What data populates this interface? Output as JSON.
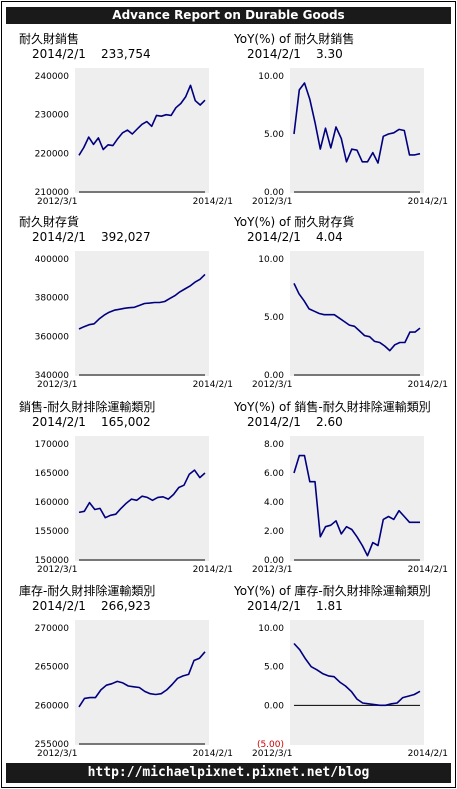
{
  "header": {
    "title": "Advance Report on Durable Goods"
  },
  "footer": {
    "url": "http://michaelpixnet.pixnet.net/blog"
  },
  "colors": {
    "line": "#00007f",
    "plot_bg": "#eeeeee",
    "negative_label": "#cc0000"
  },
  "panels": [
    {
      "title": "耐久財銷售",
      "date": "2014/2/1",
      "value": "233,754",
      "chart_data": {
        "type": "line",
        "title": "耐久財銷售",
        "x_start_label": "2012/3/1",
        "x_end_label": "2014/2/1",
        "ylim": [
          210000,
          240000
        ],
        "yticks": [
          210000,
          220000,
          230000,
          240000
        ],
        "ytick_labels": [
          "210000",
          "220000",
          "230000",
          "240000"
        ],
        "values": [
          219500,
          221500,
          224200,
          222300,
          224000,
          221000,
          222200,
          222000,
          223800,
          225300,
          226000,
          225000,
          226300,
          227500,
          228200,
          227000,
          229800,
          229600,
          230000,
          229800,
          231800,
          232900,
          234600,
          237600,
          233600,
          232500,
          233754
        ]
      }
    },
    {
      "title": "YoY(%) of 耐久財銷售",
      "date": "2014/2/1",
      "value": "3.30",
      "chart_data": {
        "type": "line",
        "title": "YoY(%) of 耐久財銷售",
        "x_start_label": "2012/3/1",
        "x_end_label": "2014/2/1",
        "ylim": [
          0,
          10
        ],
        "yticks": [
          0,
          5,
          10
        ],
        "ytick_labels": [
          "0.00",
          "5.00",
          "10.00"
        ],
        "values": [
          5.0,
          8.8,
          9.4,
          8.0,
          6.0,
          3.7,
          5.5,
          3.8,
          5.6,
          4.6,
          2.6,
          3.7,
          3.6,
          2.6,
          2.6,
          3.4,
          2.5,
          4.8,
          5.0,
          5.1,
          5.4,
          5.3,
          3.2,
          3.2,
          3.3
        ]
      }
    },
    {
      "title": "耐久財存貨",
      "date": "2014/2/1",
      "value": "392,027",
      "chart_data": {
        "type": "line",
        "title": "耐久財存貨",
        "x_start_label": "2012/3/1",
        "x_end_label": "2014/2/1",
        "ylim": [
          340000,
          400000
        ],
        "yticks": [
          340000,
          360000,
          380000,
          400000
        ],
        "ytick_labels": [
          "340000",
          "360000",
          "380000",
          "400000"
        ],
        "values": [
          363800,
          365000,
          366000,
          366500,
          369000,
          371000,
          372500,
          373500,
          374000,
          374500,
          374800,
          375000,
          376000,
          377000,
          377200,
          377500,
          377500,
          378000,
          379500,
          381000,
          383000,
          384500,
          386000,
          388000,
          389500,
          392027
        ]
      }
    },
    {
      "title": "YoY(%) of 耐久財存貨",
      "date": "2014/2/1",
      "value": "4.04",
      "chart_data": {
        "type": "line",
        "title": "YoY(%) of 耐久財存貨",
        "x_start_label": "2012/3/1",
        "x_end_label": "2014/2/1",
        "ylim": [
          0,
          10
        ],
        "yticks": [
          0,
          5,
          10
        ],
        "ytick_labels": [
          "0.00",
          "5.00",
          "10.00"
        ],
        "values": [
          7.9,
          7.0,
          6.4,
          5.7,
          5.5,
          5.3,
          5.2,
          5.2,
          5.2,
          4.9,
          4.6,
          4.3,
          4.2,
          3.8,
          3.4,
          3.3,
          2.9,
          2.8,
          2.5,
          2.1,
          2.6,
          2.8,
          2.8,
          3.7,
          3.7,
          4.04
        ]
      }
    },
    {
      "title": "銷售-耐久財排除運輸類別",
      "date": "2014/2/1",
      "value": "165,002",
      "chart_data": {
        "type": "line",
        "title": "銷售-耐久財排除運輸類別",
        "x_start_label": "2012/3/1",
        "x_end_label": "2014/2/1",
        "ylim": [
          150000,
          170000
        ],
        "yticks": [
          150000,
          155000,
          160000,
          165000,
          170000
        ],
        "ytick_labels": [
          "150000",
          "155000",
          "160000",
          "165000",
          "170000"
        ],
        "values": [
          158200,
          158400,
          159900,
          158700,
          158900,
          157300,
          157700,
          157900,
          158900,
          159800,
          160500,
          160300,
          161000,
          160800,
          160300,
          160800,
          160900,
          160500,
          161300,
          162500,
          162900,
          164800,
          165500,
          164200,
          165002
        ]
      }
    },
    {
      "title": "YoY(%) of 銷售-耐久財排除運輸類別",
      "date": "2014/2/1",
      "value": "2.60",
      "chart_data": {
        "type": "line",
        "title": "YoY(%) of 銷售-耐久財排除運輸類別",
        "x_start_label": "2012/3/1",
        "x_end_label": "2014/2/1",
        "ylim": [
          0,
          8
        ],
        "yticks": [
          0,
          2,
          4,
          6,
          8
        ],
        "ytick_labels": [
          "0.00",
          "2.00",
          "4.00",
          "6.00",
          "8.00"
        ],
        "values": [
          6.0,
          7.2,
          7.2,
          5.4,
          5.4,
          1.6,
          2.3,
          2.4,
          2.7,
          1.8,
          2.3,
          2.1,
          1.6,
          1.0,
          0.3,
          1.2,
          1.0,
          2.8,
          3.0,
          2.8,
          3.4,
          3.0,
          2.6,
          2.6,
          2.6
        ]
      }
    },
    {
      "title": "庫存-耐久財排除運輸類別",
      "date": "2014/2/1",
      "value": "266,923",
      "chart_data": {
        "type": "line",
        "title": "庫存-耐久財排除運輸類別",
        "x_start_label": "2012/3/1",
        "x_end_label": "2014/2/1",
        "ylim": [
          255000,
          270000
        ],
        "yticks": [
          255000,
          260000,
          265000,
          270000
        ],
        "ytick_labels": [
          "255000",
          "260000",
          "265000",
          "270000"
        ],
        "values": [
          259800,
          260900,
          261000,
          261000,
          262000,
          262600,
          262800,
          263100,
          262900,
          262500,
          262400,
          262300,
          261800,
          261500,
          261400,
          261500,
          262000,
          262700,
          263500,
          263800,
          264000,
          265800,
          266100,
          266923
        ]
      }
    },
    {
      "title": "YoY(%) of 庫存-耐久財排除運輸類別",
      "date": "2014/2/1",
      "value": "1.81",
      "chart_data": {
        "type": "line",
        "title": "YoY(%) of 庫存-耐久財排除運輸類別",
        "x_start_label": "2012/3/1",
        "x_end_label": "2014/2/1",
        "ylim": [
          -5,
          10
        ],
        "yticks": [
          -5,
          0,
          5,
          10
        ],
        "ytick_labels": [
          "(5.00)",
          "0.00",
          "5.00",
          "10.00"
        ],
        "values": [
          8.0,
          7.2,
          6.0,
          5.0,
          4.6,
          4.1,
          3.8,
          3.7,
          3.0,
          2.5,
          1.8,
          0.8,
          0.3,
          0.2,
          0.1,
          0.0,
          0.0,
          0.2,
          0.3,
          1.0,
          1.2,
          1.4,
          1.81
        ]
      }
    }
  ]
}
